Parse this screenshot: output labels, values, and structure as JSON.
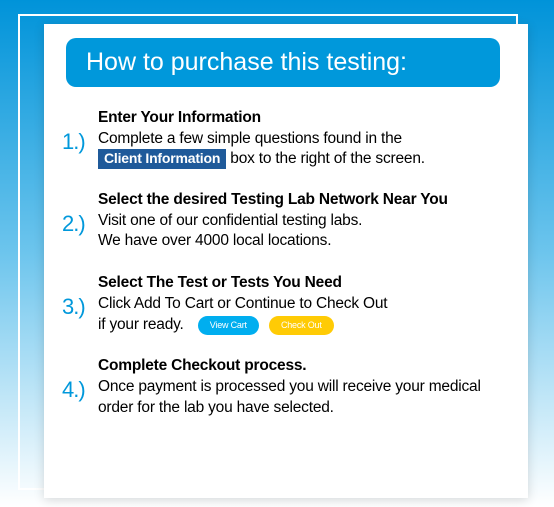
{
  "colors": {
    "title_bg": "#0098db",
    "title_color": "#ffffff",
    "number_color": "#0098db",
    "inline_bg": "#1f5a9a",
    "inline_color": "#ffffff",
    "pill1_bg": "#00aeef",
    "pill2_bg": "#ffcb05"
  },
  "title": "How to purchase this testing:",
  "steps": [
    {
      "num": "1.)",
      "heading": "Enter Your Information",
      "line1_a": "Complete a few simple questions found in the",
      "inline_label": "Client Information",
      "line1_b": " box to the right of the screen."
    },
    {
      "num": "2.)",
      "heading": "Select the desired Testing Lab Network Near You",
      "line1": "Visit one of our confidential testing labs.",
      "line2": "We have over 4000 local locations."
    },
    {
      "num": "3.)",
      "heading": "Select The Test or Tests You Need",
      "line1": "Click Add To Cart or Continue to Check Out",
      "line2": "if your ready.",
      "pill1": "View Cart",
      "pill2": "Check Out"
    },
    {
      "num": "4.)",
      "heading": "Complete Checkout process.",
      "line1": "Once payment is processed you will receive your medical order for the lab you have selected."
    }
  ]
}
